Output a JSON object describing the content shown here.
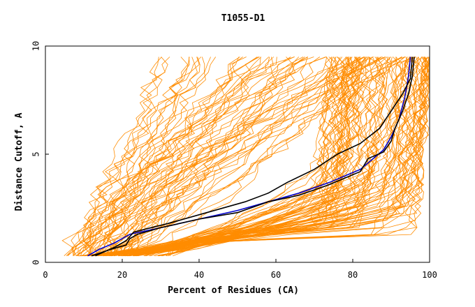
{
  "chart_data": {
    "type": "line",
    "title": "T1055-D1",
    "xlabel": "Percent of Residues (CA)",
    "ylabel": "Distance Cutoff, A",
    "xlim": [
      0,
      100
    ],
    "ylim": [
      0,
      10
    ],
    "x_ticks": [
      "0",
      "20",
      "40",
      "60",
      "80",
      "100"
    ],
    "y_ticks": [
      "0",
      "5",
      "10"
    ],
    "grid": false,
    "legend": "none",
    "colors": {
      "background_models": "#ff8c00",
      "highlight_blue": "#0000cc",
      "highlight_black": "#000000"
    },
    "background_series_count": 150,
    "series": [
      {
        "color": "#0000cc",
        "points": [
          [
            11,
            0.3
          ],
          [
            14,
            0.6
          ],
          [
            18,
            0.9
          ],
          [
            22,
            1.3
          ],
          [
            30,
            1.6
          ],
          [
            40,
            2.0
          ],
          [
            50,
            2.4
          ],
          [
            58,
            2.8
          ],
          [
            66,
            3.2
          ],
          [
            74,
            3.7
          ],
          [
            82,
            4.3
          ],
          [
            88,
            5.2
          ],
          [
            90,
            5.8
          ],
          [
            92,
            6.6
          ],
          [
            93.5,
            7.6
          ],
          [
            94.5,
            8.6
          ],
          [
            95,
            9.5
          ]
        ]
      },
      {
        "color": "#000000",
        "points": [
          [
            12,
            0.3
          ],
          [
            17,
            0.6
          ],
          [
            21,
            0.8
          ],
          [
            22,
            1.1
          ],
          [
            24,
            1.3
          ],
          [
            30,
            1.6
          ],
          [
            40,
            2.0
          ],
          [
            50,
            2.3
          ],
          [
            58,
            2.8
          ],
          [
            66,
            3.1
          ],
          [
            74,
            3.6
          ],
          [
            82,
            4.2
          ],
          [
            84,
            4.8
          ],
          [
            88,
            5.1
          ],
          [
            90,
            5.6
          ],
          [
            91,
            6.2
          ],
          [
            93,
            7.0
          ],
          [
            94.5,
            7.8
          ],
          [
            95.5,
            8.6
          ],
          [
            96,
            9.5
          ]
        ]
      },
      {
        "color": "#000000",
        "points": [
          [
            13,
            0.3
          ],
          [
            18,
            0.7
          ],
          [
            21,
            1.0
          ],
          [
            23,
            1.4
          ],
          [
            32,
            1.8
          ],
          [
            42,
            2.3
          ],
          [
            52,
            2.8
          ],
          [
            58,
            3.2
          ],
          [
            63,
            3.7
          ],
          [
            70,
            4.3
          ],
          [
            76,
            5.0
          ],
          [
            82,
            5.5
          ],
          [
            87,
            6.2
          ],
          [
            90,
            7.0
          ],
          [
            93,
            7.8
          ],
          [
            95,
            8.5
          ],
          [
            95.5,
            9.5
          ]
        ]
      }
    ]
  }
}
